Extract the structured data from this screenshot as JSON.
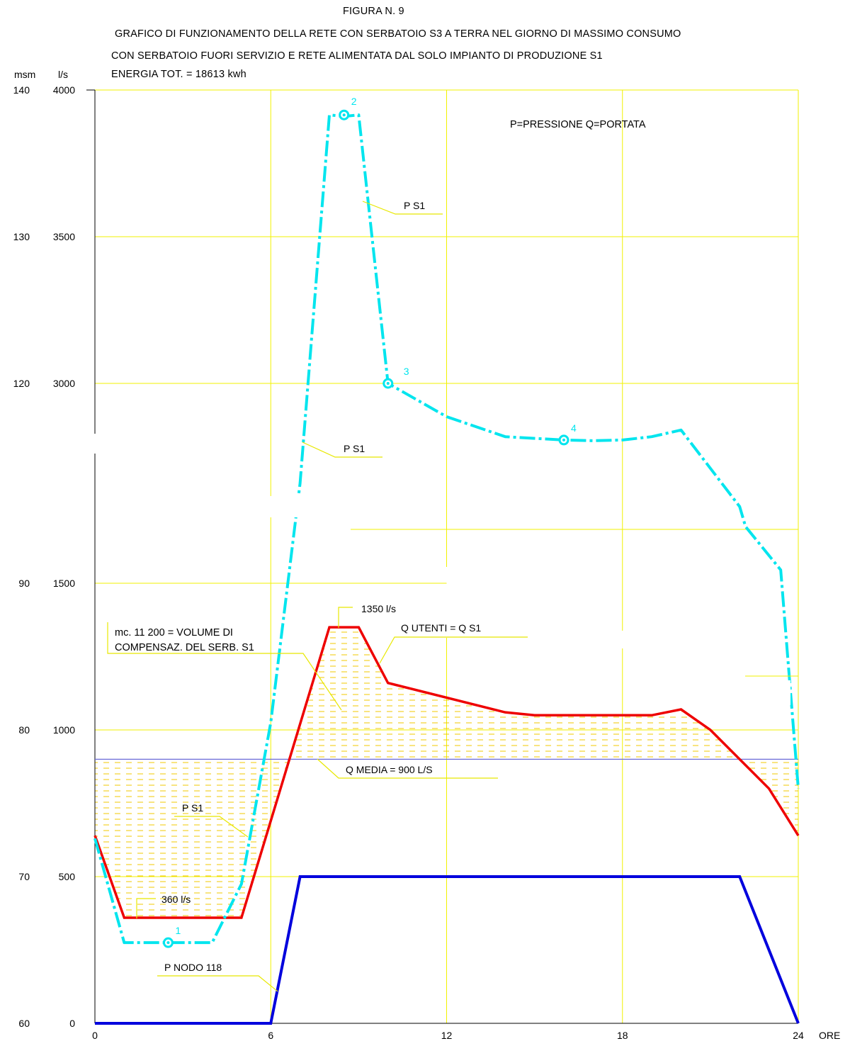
{
  "header": {
    "figure": "FIGURA N. 9",
    "line1": "GRAFICO DI FUNZIONAMENTO DELLA RETE CON SERBATOIO S3 A TERRA NEL GIORNO DI MASSIMO CONSUMO",
    "line2": "CON SERBATOIO FUORI SERVIZIO E RETE ALIMENTATA DAL SOLO IMPIANTO DI PRODUZIONE S1",
    "line3": "ENERGIA TOT. = 18613 kwh"
  },
  "chart_data": {
    "type": "line",
    "x_axis": {
      "label": "ORE",
      "range": [
        0,
        24
      ],
      "ticks": [
        0,
        6,
        12,
        18,
        24
      ],
      "tick_labels": [
        "0",
        "6",
        "12",
        "18",
        "24"
      ]
    },
    "y_axis_left": {
      "unit": "msm",
      "range": [
        60,
        140
      ],
      "ticks": [
        60,
        70,
        80,
        90,
        120,
        130,
        140
      ],
      "tick_labels": [
        "60",
        "70",
        "80",
        "90",
        "120",
        "130",
        "140"
      ]
    },
    "y_axis_right": {
      "unit": "l/s",
      "range": [
        0,
        4000
      ],
      "ticks": [
        0,
        500,
        1000,
        1500,
        3000,
        3500,
        4000
      ],
      "tick_labels": [
        "0",
        "500",
        "1000",
        "1500",
        "3000",
        "3500",
        "4000"
      ]
    },
    "legend_note": "P=PRESSIONE      Q=PORTATA",
    "grid": true,
    "series": [
      {
        "name": "Q UTENTI = Q S1",
        "unit": "l/s",
        "color": "#ee0000",
        "x": [
          0,
          1,
          5,
          8,
          9,
          10,
          14,
          15,
          19,
          20,
          21,
          23,
          24
        ],
        "y": [
          640,
          360,
          360,
          1350,
          1350,
          1160,
          1060,
          1050,
          1050,
          1070,
          1000,
          800,
          640
        ]
      },
      {
        "name": "P NODO 118",
        "unit": "l/s",
        "color": "#0000dd",
        "x": [
          0,
          6,
          7,
          22,
          24
        ],
        "y": [
          0,
          0,
          500,
          500,
          0
        ]
      },
      {
        "name": "P S1",
        "unit": "msm",
        "color": "#00e5ee",
        "x": [
          0,
          1,
          2.5,
          4,
          5,
          6,
          7,
          8,
          8.5,
          9,
          10,
          12,
          14,
          16,
          17,
          18,
          19,
          20,
          22,
          22.2,
          23.4,
          24
        ],
        "y": [
          72.6,
          65.5,
          65.5,
          65.5,
          69.5,
          80.5,
          105,
          138.3,
          138.2,
          138.3,
          120,
          115,
          112,
          111.5,
          111.4,
          111.5,
          112,
          113,
          101.5,
          98.5,
          92,
          76
        ]
      }
    ],
    "reference_lines": [
      {
        "name": "Q MEDIA = 900 L/S",
        "unit": "l/s",
        "value": 900
      }
    ],
    "markers": [
      {
        "label": "1",
        "x": 2.5,
        "y": 65.5
      },
      {
        "label": "2",
        "x": 8.5,
        "y": 138.3
      },
      {
        "label": "3",
        "x": 10,
        "y": 120
      },
      {
        "label": "4",
        "x": 16,
        "y": 111.5
      }
    ],
    "annotations": [
      {
        "text": "1350 l/s"
      },
      {
        "text": "360 l/s"
      },
      {
        "text": "Q UTENTI = Q S1"
      },
      {
        "text": "Q MEDIA = 900 L/S"
      },
      {
        "text": "P S1"
      },
      {
        "text": "P S1"
      },
      {
        "text": "P S1"
      },
      {
        "text": "P NODO 118"
      },
      {
        "text": "mc. 11 200 = VOLUME DI"
      },
      {
        "text": "COMPENSAZ. DEL SERB. S1"
      }
    ]
  },
  "colors": {
    "grid": "#f2f200",
    "hatch": "#f0c800",
    "leader": "#e8e800",
    "q_media": "#6b6bd8"
  }
}
